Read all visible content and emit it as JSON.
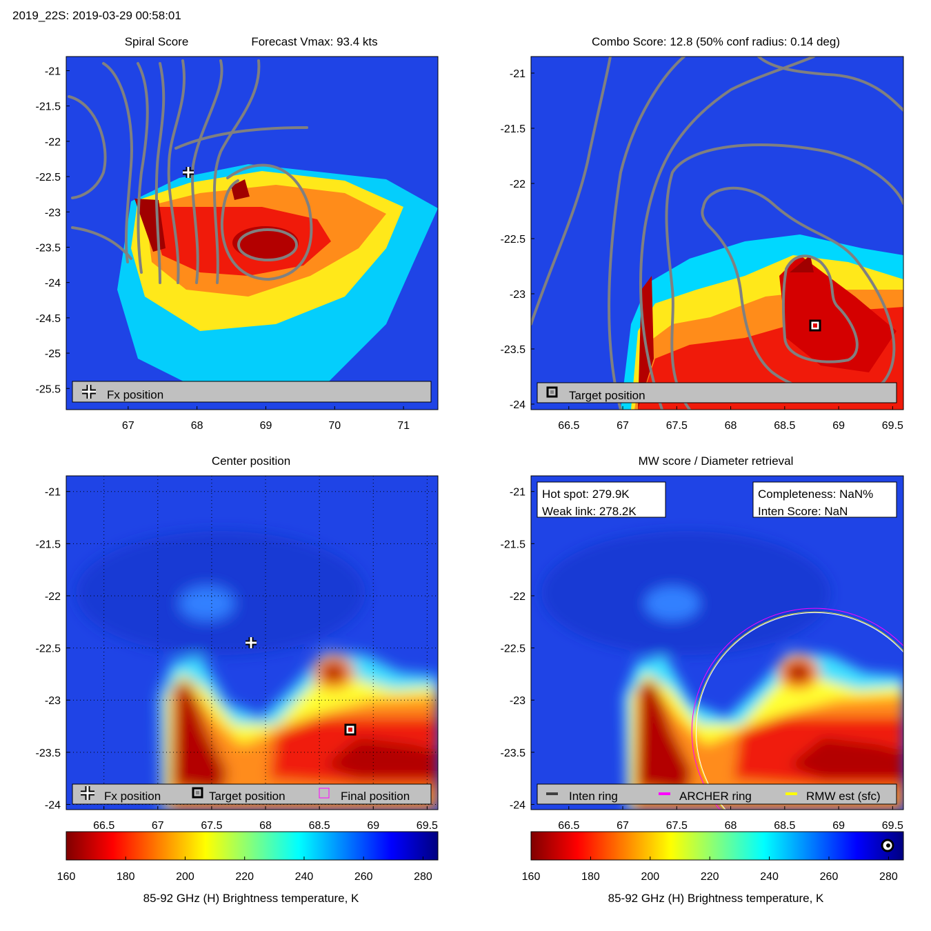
{
  "header": {
    "title": "2019_22S: 2019-03-29 00:58:01"
  },
  "colormap": {
    "stops": [
      "#800000",
      "#ff0000",
      "#ff8000",
      "#ffff00",
      "#80ff80",
      "#00ffff",
      "#0080ff",
      "#0000ff",
      "#000080"
    ],
    "ocean": "#1f44e6"
  },
  "chart_data": [
    {
      "id": "spiral",
      "type": "heatmap",
      "title": "Spiral Score",
      "title2": "Forecast Vmax: 93.4 kts",
      "xlim": [
        66.1,
        71.5
      ],
      "ylim": [
        -25.8,
        -20.8
      ],
      "xticks": [
        67,
        68,
        69,
        70,
        71
      ],
      "yticks": [
        -21,
        -21.5,
        -22,
        -22.5,
        -23,
        -23.5,
        -24,
        -24.5,
        -25,
        -25.5
      ],
      "xtick_labels": [
        "67",
        "68",
        "69",
        "70",
        "71"
      ],
      "ytick_labels": [
        "-21",
        "-21.5",
        "-22",
        "-22.5",
        "-23",
        "-23.5",
        "-24",
        "-24.5",
        "-25",
        "-25.5"
      ],
      "fx_position": [
        67.88,
        -22.45
      ],
      "legend": [
        "Fx position"
      ]
    },
    {
      "id": "combo",
      "type": "heatmap",
      "title": "Combo Score: 12.8  (50% conf radius: 0.14 deg)",
      "xlim": [
        66.15,
        69.6
      ],
      "ylim": [
        -24.05,
        -20.85
      ],
      "xticks": [
        66.5,
        67,
        67.5,
        68,
        68.5,
        69,
        69.5
      ],
      "yticks": [
        -21,
        -21.5,
        -22,
        -22.5,
        -23,
        -23.5,
        -24
      ],
      "xtick_labels": [
        "66.5",
        "67",
        "67.5",
        "68",
        "68.5",
        "69",
        "69.5"
      ],
      "ytick_labels": [
        "-21",
        "-21.5",
        "-22",
        "-22.5",
        "-23",
        "-23.5",
        "-24"
      ],
      "target_position": [
        68.78,
        -23.3
      ],
      "legend": [
        "Target position"
      ]
    },
    {
      "id": "center",
      "type": "heatmap",
      "title": "Center position",
      "xlim": [
        66.15,
        69.6
      ],
      "ylim": [
        -24.05,
        -20.85
      ],
      "xticks": [
        66.5,
        67,
        67.5,
        68,
        68.5,
        69,
        69.5
      ],
      "yticks": [
        -21,
        -21.5,
        -22,
        -22.5,
        -23,
        -23.5,
        -24
      ],
      "xtick_labels": [
        "66.5",
        "67",
        "67.5",
        "68",
        "68.5",
        "69",
        "69.5"
      ],
      "ytick_labels": [
        "-21",
        "-21.5",
        "-22",
        "-22.5",
        "-23",
        "-23.5",
        "-24"
      ],
      "fx_position": [
        67.88,
        -22.45
      ],
      "target_position": [
        68.78,
        -23.3
      ],
      "legend": [
        "Fx position",
        "Target position",
        "Final position"
      ],
      "colorbar": {
        "range": [
          160,
          285
        ],
        "ticks": [
          "160",
          "180",
          "200",
          "220",
          "240",
          "260",
          "280"
        ],
        "tick_values": [
          160,
          180,
          200,
          220,
          240,
          260,
          280
        ],
        "label": "85-92 GHz (H) Brightness temperature, K"
      }
    },
    {
      "id": "mw",
      "type": "heatmap",
      "title": "MW score / Diameter retrieval",
      "xlim": [
        66.15,
        69.6
      ],
      "ylim": [
        -24.05,
        -20.85
      ],
      "xticks": [
        66.5,
        67,
        67.5,
        68,
        68.5,
        69,
        69.5
      ],
      "yticks": [
        -21,
        -21.5,
        -22,
        -22.5,
        -23,
        -23.5,
        -24
      ],
      "xtick_labels": [
        "66.5",
        "67",
        "67.5",
        "68",
        "68.5",
        "69",
        "69.5"
      ],
      "ytick_labels": [
        "-21",
        "-21.5",
        "-22",
        "-22.5",
        "-23",
        "-23.5",
        "-24"
      ],
      "info_left": [
        "Hot spot: 279.9K",
        "Weak link: 278.2K"
      ],
      "info_right": [
        "Completeness: NaN%",
        "Inten Score: NaN"
      ],
      "ring_center": [
        68.78,
        -23.3
      ],
      "archer_ring_radius_deg": 1.14,
      "rmw_ring_radius_deg": 1.1,
      "legend": [
        "Inten ring",
        "ARCHER ring",
        "RMW est (sfc)"
      ],
      "legend_colors": [
        "#404040",
        "#ff00ff",
        "#ffff00"
      ],
      "colorbar": {
        "range": [
          160,
          285
        ],
        "ticks": [
          "160",
          "180",
          "200",
          "220",
          "240",
          "260",
          "280"
        ],
        "tick_values": [
          160,
          180,
          200,
          220,
          240,
          260,
          280
        ],
        "label": "85-92 GHz (H) Brightness temperature, K"
      }
    }
  ]
}
